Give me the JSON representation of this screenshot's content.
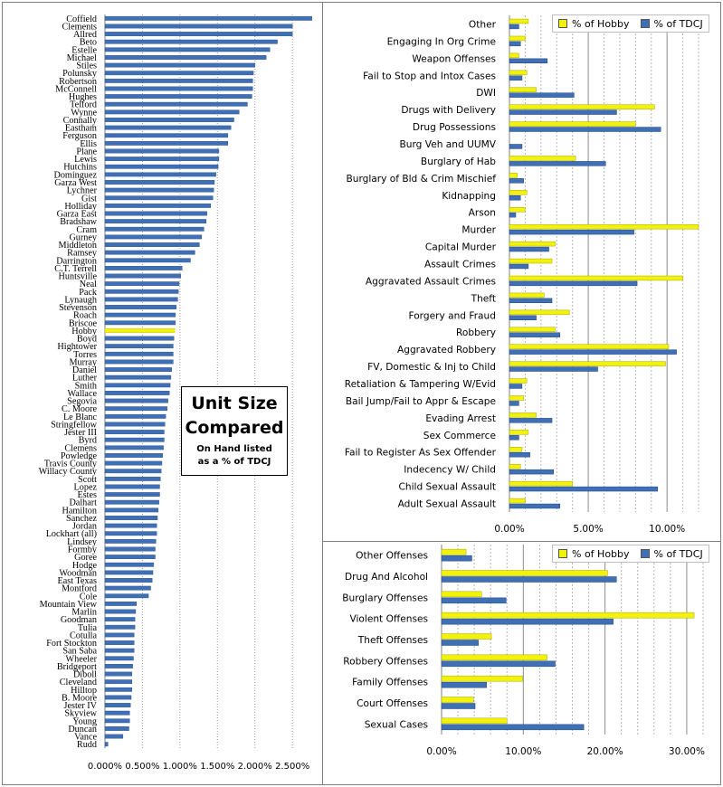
{
  "annotation": {
    "title_line1": "Unit Size",
    "title_line2": "Compared",
    "subtitle_line1": "On Hand listed",
    "subtitle_line2": "as a % of TDCJ"
  },
  "colors": {
    "hobby": "#f2f20d",
    "tdcj": "#3f6fb5",
    "grid": "#9a9a9a"
  },
  "chart_data": [
    {
      "type": "bar",
      "orientation": "horizontal",
      "xlim": [
        0,
        2.8
      ],
      "xticks": [
        "0.000%",
        "0.500%",
        "1.000%",
        "1.500%",
        "2.000%",
        "2.500%"
      ],
      "grid": true,
      "highlight": "Hobby",
      "categories": [
        "Coffield",
        "Clements",
        "Allred",
        "Beto",
        "Estelle",
        "Michael",
        "Stiles",
        "Polunsky",
        "Robertson",
        "McConnell",
        "Hughes",
        "Telford",
        "Wynne",
        "Connally",
        "Eastham",
        "Ferguson",
        "Ellis",
        "Plane",
        "Lewis",
        "Hutchins",
        "Dominguez",
        "Garza West",
        "Lychner",
        "Gist",
        "Holliday",
        "Garza East",
        "Bradshaw",
        "Cram",
        "Gurney",
        "Middleton",
        "Ramsey",
        "Darrington",
        "C.T. Terrell",
        "Huntsville",
        "Neal",
        "Pack",
        "Lynaugh",
        "Stevenson",
        "Roach",
        "Briscoe",
        "Hobby",
        "Boyd",
        "Hightower",
        "Torres",
        "Murray",
        "Daniel",
        "Luther",
        "Smith",
        "Wallace",
        "Segovia",
        "C. Moore",
        "Le Blanc",
        "Stringfellow",
        "Jester III",
        "Byrd",
        "Clemens",
        "Powledge",
        "Travis County",
        "Willacy County",
        "Scott",
        "Lopez",
        "Estes",
        "Dalhart",
        "Hamilton",
        "Sanchez",
        "Jordan",
        "Lockhart (all)",
        "Lindsey",
        "Formby",
        "Goree",
        "Hodge",
        "Woodman",
        "East Texas",
        "Montford",
        "Cole",
        "Mountain View",
        "Marlin",
        "Goodman",
        "Tulia",
        "Cotulla",
        "Fort Stockton",
        "San Saba",
        "Wheeler",
        "Bridgeport",
        "Diboll",
        "Cleveland",
        "Hilltop",
        "B. Moore",
        "Jester IV",
        "Skyview",
        "Young",
        "Duncan",
        "Vance",
        "Rudd"
      ],
      "values": [
        2.76,
        2.5,
        2.5,
        2.3,
        2.2,
        2.15,
        2.0,
        1.98,
        1.97,
        1.97,
        1.96,
        1.9,
        1.79,
        1.72,
        1.68,
        1.64,
        1.64,
        1.52,
        1.52,
        1.51,
        1.48,
        1.46,
        1.45,
        1.44,
        1.41,
        1.36,
        1.35,
        1.32,
        1.29,
        1.26,
        1.2,
        1.14,
        1.03,
        1.01,
        0.99,
        0.98,
        0.97,
        0.95,
        0.94,
        0.94,
        0.93,
        0.92,
        0.91,
        0.91,
        0.91,
        0.89,
        0.88,
        0.87,
        0.86,
        0.84,
        0.83,
        0.81,
        0.8,
        0.79,
        0.79,
        0.78,
        0.77,
        0.76,
        0.75,
        0.74,
        0.73,
        0.73,
        0.72,
        0.71,
        0.7,
        0.69,
        0.69,
        0.68,
        0.67,
        0.67,
        0.65,
        0.64,
        0.63,
        0.61,
        0.58,
        0.42,
        0.41,
        0.4,
        0.4,
        0.39,
        0.39,
        0.39,
        0.38,
        0.37,
        0.36,
        0.36,
        0.36,
        0.35,
        0.34,
        0.33,
        0.33,
        0.32,
        0.24,
        0.04
      ]
    },
    {
      "type": "bar",
      "orientation": "horizontal",
      "xlim": [
        0,
        12
      ],
      "xticks": [
        "0.00%",
        "5.00%",
        "10.00%"
      ],
      "grid": true,
      "legend": "top-right",
      "categories": [
        "Other",
        "Engaging In Org Crime",
        "Weapon Offenses",
        "Fail to Stop and Intox Cases",
        "DWI",
        "Drugs with Delivery",
        "Drug Possessions",
        "Burg Veh and UUMV",
        "Burglary of Hab",
        "Burglary of Bld & Crim Mischief",
        "Kidnapping",
        "Arson",
        "Murder",
        "Capital Murder",
        "Assault Crimes",
        "Aggravated Assault Crimes",
        "Theft",
        "Forgery and Fraud",
        "Robbery",
        "Aggravated Robbery",
        "FV, Domestic & Inj to Child",
        "Retaliation & Tampering  W/Evid",
        "Bail Jump/Fail to Appr & Escape",
        "Evading Arrest",
        "Sex Commerce",
        "Fail to Register As Sex Offender",
        "Indecency W/ Child",
        "Child Sexual Assault",
        "Adult Sexual Assault"
      ],
      "series": [
        {
          "name": "% of Hobby",
          "values": [
            1.2,
            1.0,
            0.6,
            1.1,
            1.7,
            9.2,
            8.0,
            0.0,
            4.2,
            0.5,
            1.1,
            1.0,
            12.0,
            2.9,
            2.7,
            11.0,
            2.2,
            3.8,
            2.9,
            10.1,
            9.9,
            1.1,
            0.9,
            1.7,
            1.2,
            0.8,
            0.7,
            4.0,
            1.0
          ]
        },
        {
          "name": "% of TDCJ",
          "values": [
            0.6,
            0.7,
            2.4,
            0.8,
            4.1,
            6.8,
            9.6,
            0.8,
            6.1,
            0.9,
            0.7,
            0.4,
            7.9,
            2.5,
            1.2,
            8.1,
            2.7,
            1.7,
            3.2,
            10.6,
            5.6,
            0.8,
            0.6,
            2.7,
            0.6,
            1.3,
            2.8,
            9.4,
            3.2
          ]
        }
      ]
    },
    {
      "type": "bar",
      "orientation": "horizontal",
      "xlim": [
        0,
        32
      ],
      "xticks": [
        "0.00%",
        "10.00%",
        "20.00%",
        "30.00%"
      ],
      "grid": true,
      "legend": "top-right",
      "categories": [
        "Other Offenses",
        "Drug And Alcohol",
        "Burglary Offenses",
        "Violent Offenses",
        "Theft Offenses",
        "Robbery Offenses",
        "Family Offenses",
        "Court Offenses",
        "Sexual Cases"
      ],
      "series": [
        {
          "name": "% of Hobby",
          "values": [
            3.0,
            20.3,
            4.9,
            30.9,
            6.1,
            12.9,
            9.9,
            3.9,
            8.0
          ]
        },
        {
          "name": "% of TDCJ",
          "values": [
            3.7,
            21.4,
            7.9,
            21.0,
            4.5,
            13.9,
            5.5,
            4.1,
            17.4
          ]
        }
      ]
    }
  ]
}
